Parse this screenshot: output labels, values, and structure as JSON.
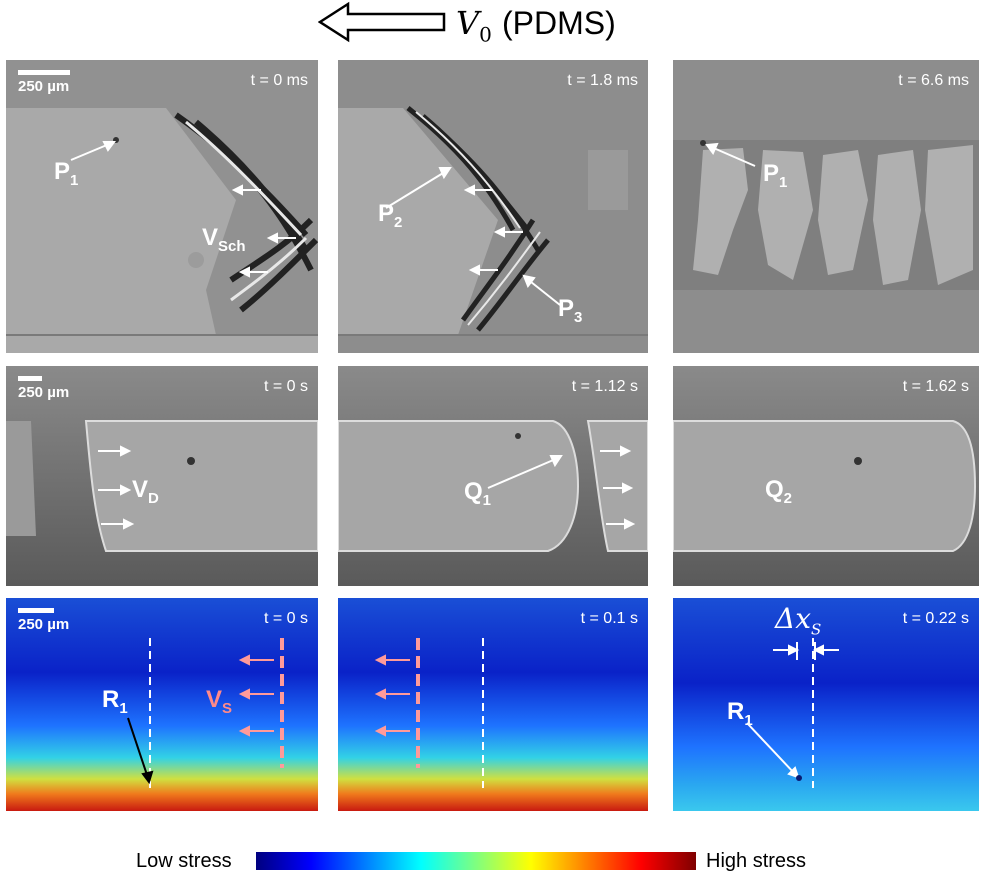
{
  "header": {
    "velocity_symbol": "V",
    "velocity_sub": "0",
    "material": "(PDMS)"
  },
  "row1": {
    "scale": "250 µm",
    "panels": [
      {
        "time": "t = 0 ms",
        "labels": {
          "p1": "P",
          "p1_sub": "1",
          "vsch": "V",
          "vsch_sub": "Sch"
        }
      },
      {
        "time": "t = 1.8 ms",
        "labels": {
          "p2": "P",
          "p2_sub": "2",
          "p3": "P",
          "p3_sub": "3"
        }
      },
      {
        "time": "t = 6.6 ms",
        "labels": {
          "p1": "P",
          "p1_sub": "1"
        }
      }
    ]
  },
  "row2": {
    "scale": "250 µm",
    "panels": [
      {
        "time": "t = 0 s",
        "labels": {
          "vd": "V",
          "vd_sub": "D"
        }
      },
      {
        "time": "t = 1.12 s",
        "labels": {
          "q1": "Q",
          "q1_sub": "1"
        }
      },
      {
        "time": "t = 1.62 s",
        "labels": {
          "q2": "Q",
          "q2_sub": "2"
        }
      }
    ]
  },
  "row3": {
    "scale": "250 µm",
    "panels": [
      {
        "time": "t = 0 s",
        "labels": {
          "r1": "R",
          "r1_sub": "1",
          "vs": "V",
          "vs_sub": "S"
        }
      },
      {
        "time": "t = 0.1 s",
        "labels": {}
      },
      {
        "time": "t = 0.22 s",
        "labels": {
          "dx": "Δx",
          "dx_sub": "S",
          "r1": "R",
          "r1_sub": "1"
        }
      }
    ]
  },
  "colorbar": {
    "low": "Low stress",
    "high": "High stress"
  },
  "colors": {
    "pink_arrow": "#ff8a8a",
    "white": "#ffffff"
  }
}
